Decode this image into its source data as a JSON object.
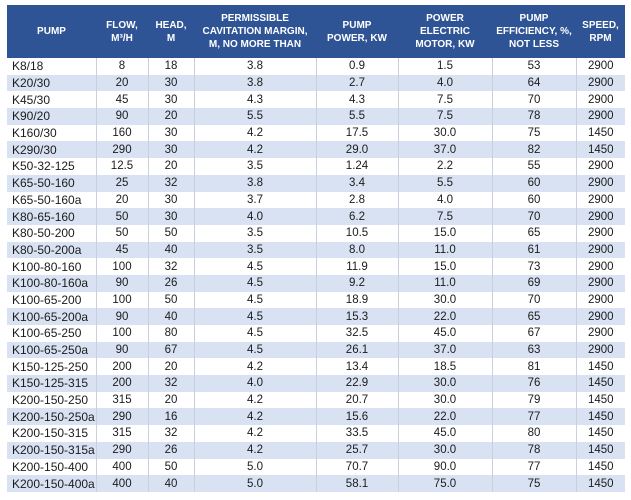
{
  "colors": {
    "header_bg": "#2F5496",
    "header_text": "#FFFFFF",
    "stripe_bg": "#D9E2F3",
    "row_bg": "#FFFFFF",
    "grid_line": "#C9CFDC",
    "text": "#1B1B1B"
  },
  "table": {
    "columns": [
      {
        "label": "PUMP"
      },
      {
        "label": "FLOW,\nM³/H"
      },
      {
        "label": "HEAD,\nM"
      },
      {
        "label": "PERMISSIBLE\nCAVITATION MARGIN,\nM, NO MORE THAN"
      },
      {
        "label": "PUMP\nPOWER, KW"
      },
      {
        "label": "POWER\nELECTRIC\nMOTOR, KW"
      },
      {
        "label": "PUMP\nEFFICIENCY, %,\nNOT LESS"
      },
      {
        "label": "SPEED,\nRPM"
      }
    ],
    "rows": [
      [
        "K8/18",
        "8",
        "18",
        "3.8",
        "0.9",
        "1.5",
        "53",
        "2900"
      ],
      [
        "K20/30",
        "20",
        "30",
        "3.8",
        "2.7",
        "4.0",
        "64",
        "2900"
      ],
      [
        "K45/30",
        "45",
        "30",
        "4.3",
        "4.3",
        "7.5",
        "70",
        "2900"
      ],
      [
        "K90/20",
        "90",
        "20",
        "5.5",
        "5.5",
        "7.5",
        "78",
        "2900"
      ],
      [
        "K160/30",
        "160",
        "30",
        "4.2",
        "17.5",
        "30.0",
        "75",
        "1450"
      ],
      [
        "K290/30",
        "290",
        "30",
        "4.2",
        "29.0",
        "37.0",
        "82",
        "1450"
      ],
      [
        "K50-32-125",
        "12.5",
        "20",
        "3.5",
        "1.24",
        "2.2",
        "55",
        "2900"
      ],
      [
        "K65-50-160",
        "25",
        "32",
        "3.8",
        "3.4",
        "5.5",
        "60",
        "2900"
      ],
      [
        "K65-50-160a",
        "20",
        "30",
        "3.7",
        "2.8",
        "4.0",
        "60",
        "2900"
      ],
      [
        "K80-65-160",
        "50",
        "30",
        "4.0",
        "6.2",
        "7.5",
        "70",
        "2900"
      ],
      [
        "K80-50-200",
        "50",
        "50",
        "3.5",
        "10.5",
        "15.0",
        "65",
        "2900"
      ],
      [
        "K80-50-200a",
        "45",
        "40",
        "3.5",
        "8.0",
        "11.0",
        "61",
        "2900"
      ],
      [
        "K100-80-160",
        "100",
        "32",
        "4.5",
        "11.9",
        "15.0",
        "73",
        "2900"
      ],
      [
        "K100-80-160a",
        "90",
        "26",
        "4.5",
        "9.2",
        "11.0",
        "69",
        "2900"
      ],
      [
        "K100-65-200",
        "100",
        "50",
        "4.5",
        "18.9",
        "30.0",
        "70",
        "2900"
      ],
      [
        "K100-65-200a",
        "90",
        "40",
        "4.5",
        "15.3",
        "22.0",
        "65",
        "2900"
      ],
      [
        "K100-65-250",
        "100",
        "80",
        "4.5",
        "32.5",
        "45.0",
        "67",
        "2900"
      ],
      [
        "K100-65-250a",
        "90",
        "67",
        "4.5",
        "26.1",
        "37.0",
        "63",
        "2900"
      ],
      [
        "K150-125-250",
        "200",
        "20",
        "4.2",
        "13.4",
        "18.5",
        "81",
        "1450"
      ],
      [
        "K150-125-315",
        "200",
        "32",
        "4.0",
        "22.9",
        "30.0",
        "76",
        "1450"
      ],
      [
        "K200-150-250",
        "315",
        "20",
        "4.2",
        "20.7",
        "30.0",
        "79",
        "1450"
      ],
      [
        "K200-150-250a",
        "290",
        "16",
        "4.2",
        "15.6",
        "22.0",
        "77",
        "1450"
      ],
      [
        "K200-150-315",
        "315",
        "32",
        "4.2",
        "33.5",
        "45.0",
        "80",
        "1450"
      ],
      [
        "K200-150-315a",
        "290",
        "26",
        "4.2",
        "25.7",
        "30.0",
        "78",
        "1450"
      ],
      [
        "K200-150-400",
        "400",
        "50",
        "5.0",
        "70.7",
        "90.0",
        "77",
        "1450"
      ],
      [
        "K200-150-400a",
        "400",
        "40",
        "5.0",
        "58.1",
        "75.0",
        "75",
        "1450"
      ]
    ]
  }
}
